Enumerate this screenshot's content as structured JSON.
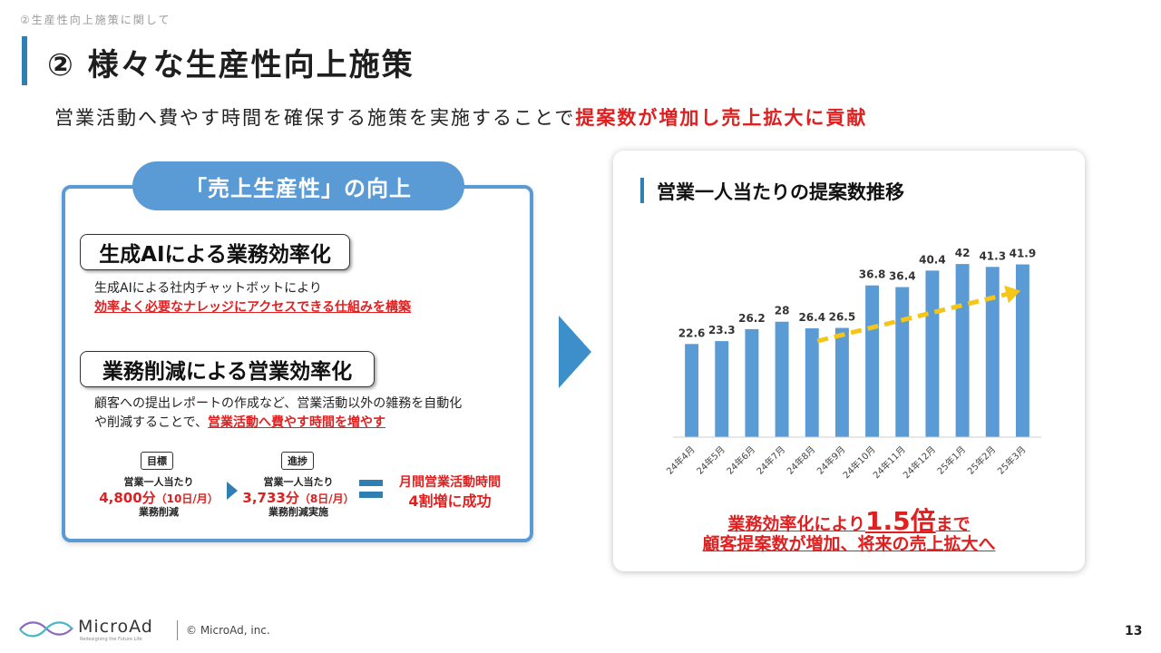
{
  "breadcrumb": "②生産性向上施策に関して",
  "title": "② 様々な生産性向上施策",
  "subtitle": {
    "plain": "営業活動へ費やす時間を確保する施策を実施することで",
    "highlight": "提案数が増加し売上拡大に貢献"
  },
  "left_panel": {
    "pill": "「売上生産性」の向上",
    "section1": {
      "heading": "生成AIによる業務効率化",
      "line1": "生成AIによる社内チャットボットにより",
      "line2": "効率よく必要なナレッジにアクセスできる仕組みを構築"
    },
    "section2": {
      "heading": "業務削減による営業効率化",
      "line1": "顧客への提出レポートの作成など、営業活動以外の雑務を自動化",
      "line2_plain": "や削減することで、",
      "line2_red": "営業活動へ費やす時間を増やす"
    },
    "goal": {
      "tag": "目標",
      "label": "営業一人当たり",
      "value": "4,800分",
      "paren": "（10日/月）",
      "note": "業務削減"
    },
    "progress": {
      "tag": "進捗",
      "label": "営業一人当たり",
      "value": "3,733分",
      "paren": "（8日/月）",
      "note": "業務削減実施"
    },
    "result": {
      "line1": "月間営業活動時間",
      "line2": "4割増に成功"
    }
  },
  "chart_card": {
    "title": "営業一人当たりの提案数推移",
    "conclusion": {
      "line1_a": "業務効率化により",
      "line1_big": "1.5倍",
      "line1_b": "まで",
      "line2": "顧客提案数が増加、将来の売上拡大へ"
    }
  },
  "chart_data": {
    "type": "bar",
    "categories": [
      "24年4月",
      "24年5月",
      "24年6月",
      "24年7月",
      "24年8月",
      "24年9月",
      "24年10月",
      "24年11月",
      "24年12月",
      "25年1月",
      "25年2月",
      "25年3月"
    ],
    "values": [
      22.6,
      23.3,
      26.2,
      28,
      26.4,
      26.5,
      36.8,
      36.4,
      40.4,
      42,
      41.3,
      41.9
    ],
    "ylim": [
      0,
      44
    ],
    "grid": false,
    "bar_color": "#5b9bd5",
    "trend_arrow_color": "#f5c518",
    "trend_arrow": {
      "from_index": 4,
      "to_index": 11
    }
  },
  "colors": {
    "accent_blue": "#2f7fb3",
    "panel_blue": "#5b9bd5",
    "highlight_red": "#e02020"
  },
  "footer": {
    "brand": "MicroAd",
    "tagline": "Redesigning the Future Life",
    "copyright": "© MicroAd, inc.",
    "page_number": "13"
  }
}
